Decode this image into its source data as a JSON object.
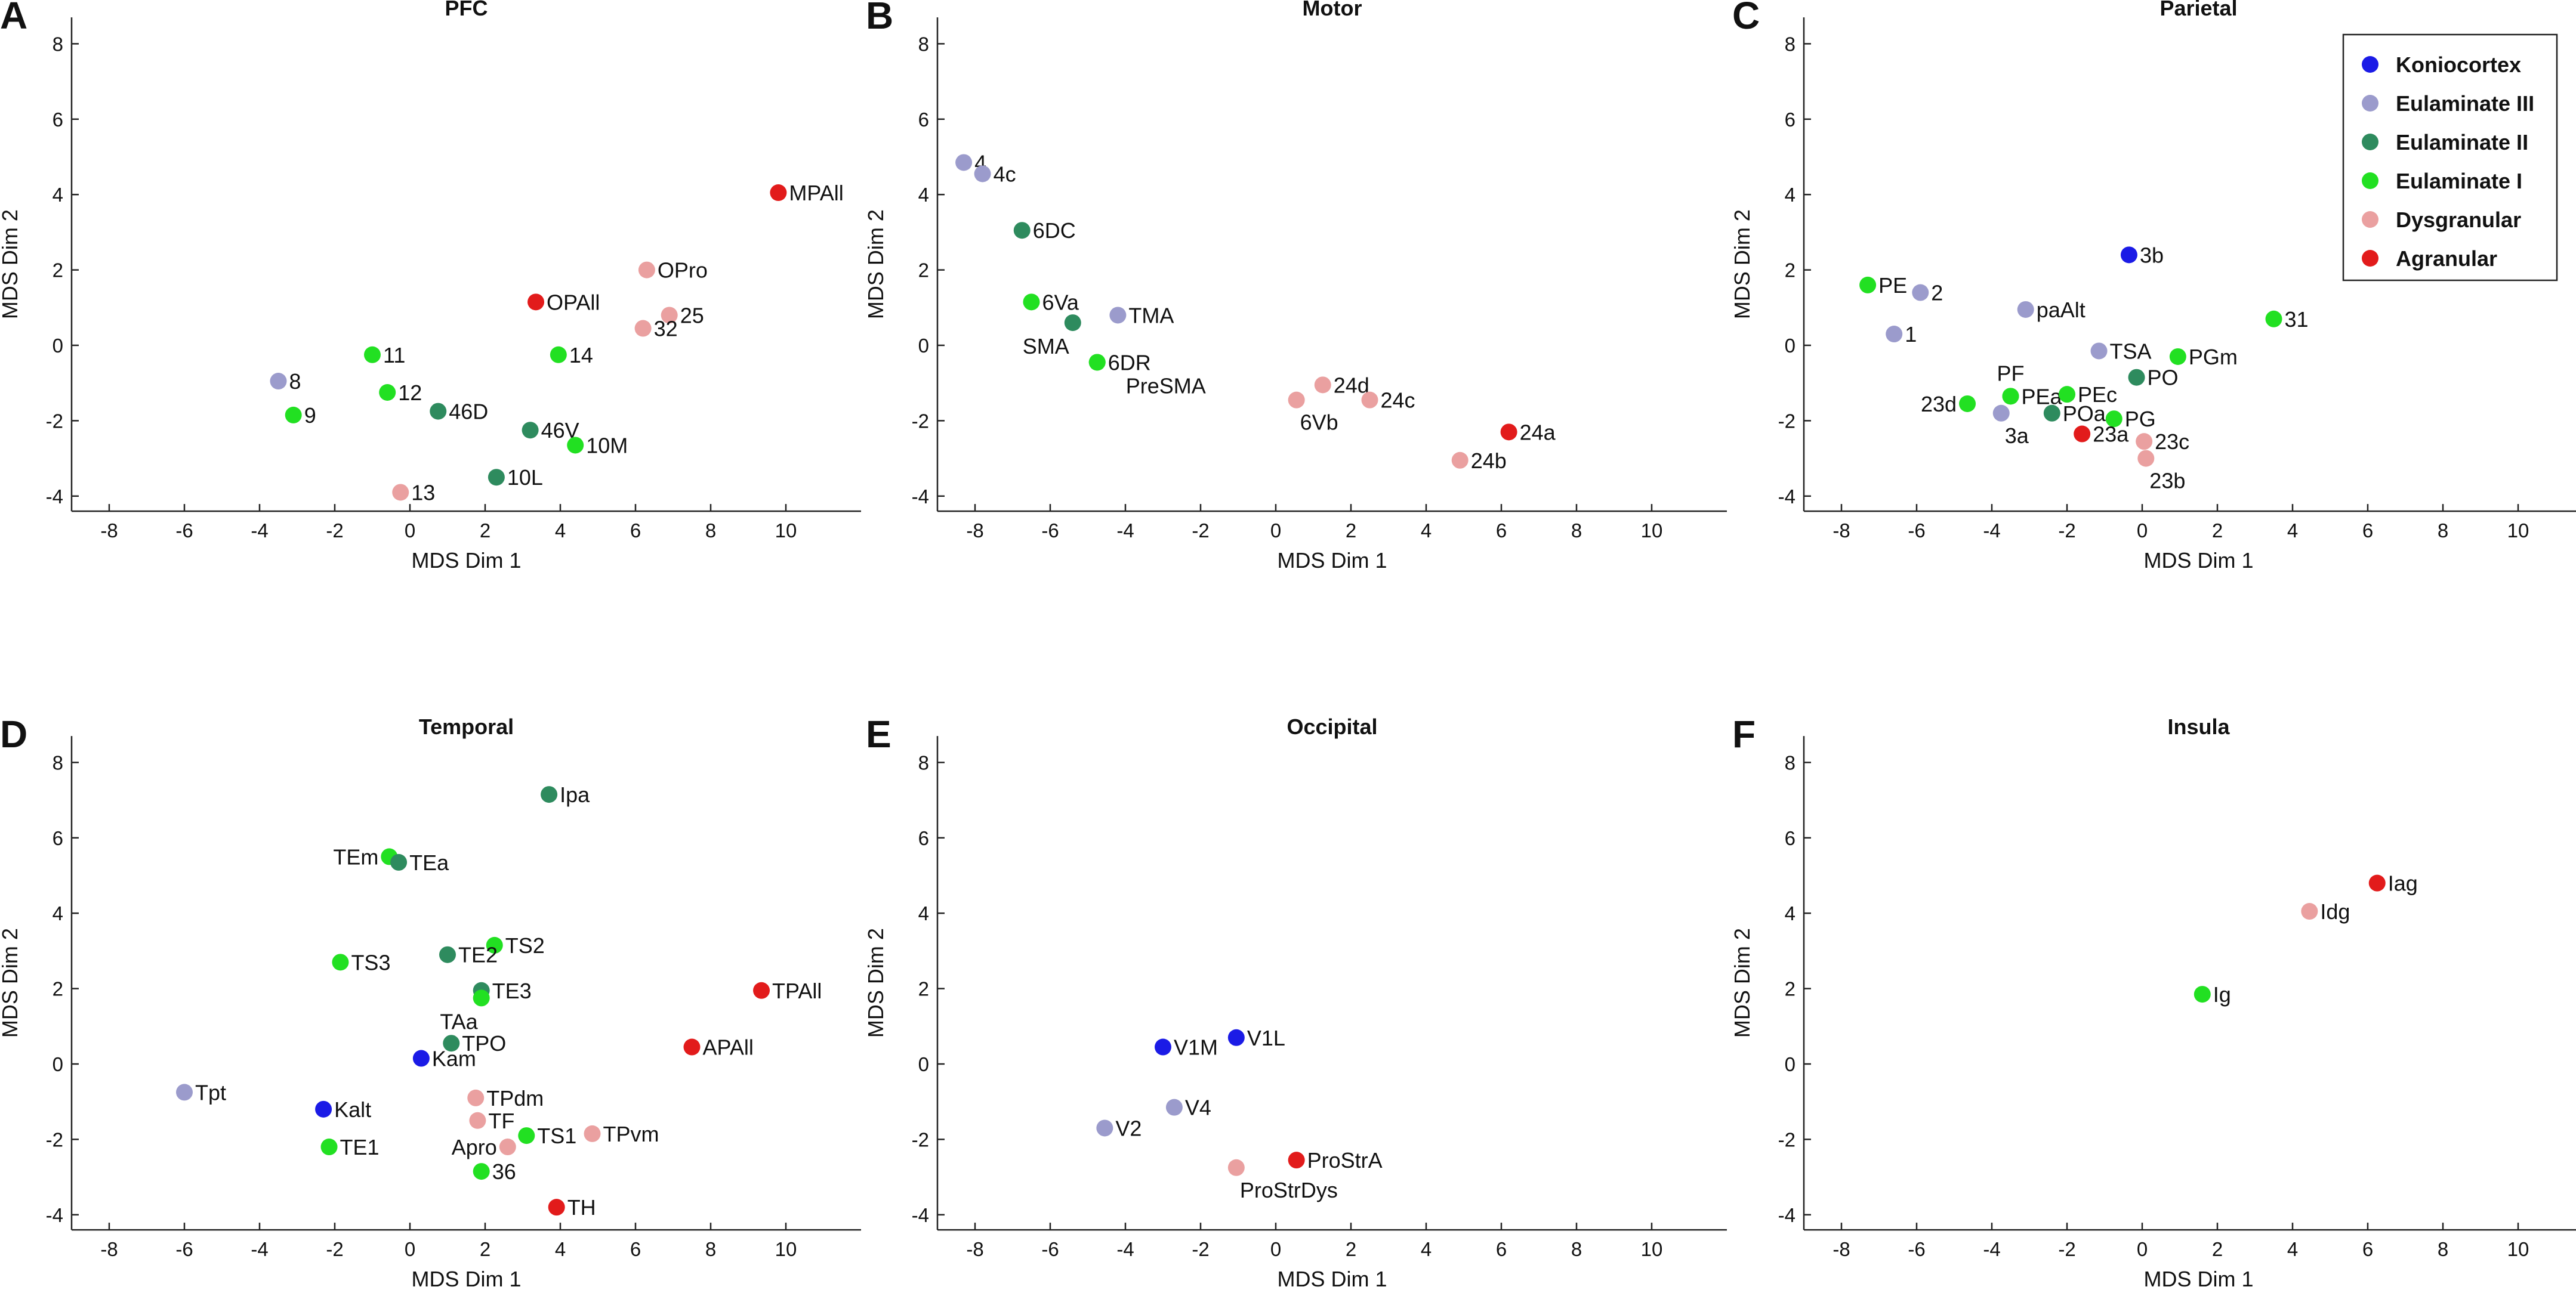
{
  "colors": {
    "Koniocortex": "#1b1be6",
    "Eulaminate III": "#9b9bcc",
    "Eulaminate II": "#2e8b5e",
    "Eulaminate I": "#22e022",
    "Dysgranular": "#eaa0a0",
    "Agranular": "#e21b1b"
  },
  "legend": {
    "placement": "top-right of panel C",
    "entries": [
      "Koniocortex",
      "Eulaminate III",
      "Eulaminate II",
      "Eulaminate I",
      "Dysgranular",
      "Agranular"
    ]
  },
  "chart_data": [
    {
      "type": "scatter",
      "panel": "A",
      "title": "PFC",
      "xlabel": "MDS Dim 1",
      "ylabel": "MDS Dim 2",
      "xlim": [
        -9,
        12
      ],
      "ylim": [
        -4.4,
        8.7
      ],
      "xticks": [
        -8,
        -6,
        -4,
        -2,
        0,
        2,
        4,
        6,
        8,
        10
      ],
      "yticks": [
        -4,
        -2,
        0,
        2,
        4,
        6,
        8
      ],
      "points": [
        {
          "label": "MPAll",
          "x": 9.8,
          "y": 4.05,
          "class": "Agranular",
          "lpos": "right"
        },
        {
          "label": "OPro",
          "x": 6.3,
          "y": 2.0,
          "class": "Dysgranular",
          "lpos": "right"
        },
        {
          "label": "OPAll",
          "x": 3.35,
          "y": 1.15,
          "class": "Agranular",
          "lpos": "right"
        },
        {
          "label": "25",
          "x": 6.9,
          "y": 0.8,
          "class": "Dysgranular",
          "lpos": "right"
        },
        {
          "label": "32",
          "x": 6.2,
          "y": 0.45,
          "class": "Dysgranular",
          "lpos": "right"
        },
        {
          "label": "14",
          "x": 3.95,
          "y": -0.25,
          "class": "Eulaminate I",
          "lpos": "right"
        },
        {
          "label": "11",
          "x": -1.0,
          "y": -0.25,
          "class": "Eulaminate I",
          "lpos": "right"
        },
        {
          "label": "8",
          "x": -3.5,
          "y": -0.95,
          "class": "Eulaminate III",
          "lpos": "right"
        },
        {
          "label": "12",
          "x": -0.6,
          "y": -1.25,
          "class": "Eulaminate I",
          "lpos": "right"
        },
        {
          "label": "46D",
          "x": 0.75,
          "y": -1.75,
          "class": "Eulaminate II",
          "lpos": "right"
        },
        {
          "label": "9",
          "x": -3.1,
          "y": -1.85,
          "class": "Eulaminate I",
          "lpos": "right"
        },
        {
          "label": "46V",
          "x": 3.2,
          "y": -2.25,
          "class": "Eulaminate II",
          "lpos": "right"
        },
        {
          "label": "10M",
          "x": 4.4,
          "y": -2.65,
          "class": "Eulaminate I",
          "lpos": "right"
        },
        {
          "label": "10L",
          "x": 2.3,
          "y": -3.5,
          "class": "Eulaminate II",
          "lpos": "right"
        },
        {
          "label": "13",
          "x": -0.25,
          "y": -3.9,
          "class": "Dysgranular",
          "lpos": "right"
        }
      ]
    },
    {
      "type": "scatter",
      "panel": "B",
      "title": "Motor",
      "xlabel": "MDS Dim 1",
      "ylabel": "MDS Dim 2",
      "xlim": [
        -9,
        12
      ],
      "ylim": [
        -4.4,
        8.7
      ],
      "xticks": [
        -8,
        -6,
        -4,
        -2,
        0,
        2,
        4,
        6,
        8,
        10
      ],
      "yticks": [
        -4,
        -2,
        0,
        2,
        4,
        6,
        8
      ],
      "points": [
        {
          "label": "4",
          "x": -8.3,
          "y": 4.85,
          "class": "Eulaminate III",
          "lpos": "right"
        },
        {
          "label": "4c",
          "x": -7.8,
          "y": 4.55,
          "class": "Eulaminate III",
          "lpos": "right"
        },
        {
          "label": "6DC",
          "x": -6.75,
          "y": 3.05,
          "class": "Eulaminate II",
          "lpos": "right"
        },
        {
          "label": "6Va",
          "x": -6.5,
          "y": 1.15,
          "class": "Eulaminate I",
          "lpos": "right"
        },
        {
          "label": "TMA",
          "x": -4.2,
          "y": 0.8,
          "class": "Eulaminate III",
          "lpos": "right"
        },
        {
          "label": "SMA",
          "x": -5.4,
          "y": 0.6,
          "class": "Eulaminate II",
          "lpos": "below-left"
        },
        {
          "label": "6DR",
          "x": -4.75,
          "y": -0.45,
          "class": "Eulaminate I",
          "lpos": "right"
        },
        {
          "label": "PreSMA",
          "x": -4.75,
          "y": -0.45,
          "class": "Eulaminate I",
          "lpos": "below"
        },
        {
          "label": "24d",
          "x": 1.25,
          "y": -1.05,
          "class": "Dysgranular",
          "lpos": "right"
        },
        {
          "label": "6Vb",
          "x": 0.55,
          "y": -1.45,
          "class": "Dysgranular",
          "lpos": "below-right"
        },
        {
          "label": "24c",
          "x": 2.5,
          "y": -1.45,
          "class": "Dysgranular",
          "lpos": "right"
        },
        {
          "label": "24a",
          "x": 6.2,
          "y": -2.3,
          "class": "Agranular",
          "lpos": "right"
        },
        {
          "label": "24b",
          "x": 4.9,
          "y": -3.05,
          "class": "Dysgranular",
          "lpos": "right"
        }
      ]
    },
    {
      "type": "scatter",
      "panel": "C",
      "title": "Parietal",
      "xlabel": "MDS Dim 1",
      "ylabel": "MDS Dim 2",
      "xlim": [
        -9,
        12
      ],
      "ylim": [
        -4.4,
        8.7
      ],
      "xticks": [
        -8,
        -6,
        -4,
        -2,
        0,
        2,
        4,
        6,
        8,
        10
      ],
      "yticks": [
        -4,
        -2,
        0,
        2,
        4,
        6,
        8
      ],
      "points": [
        {
          "label": "3b",
          "x": -0.35,
          "y": 2.4,
          "class": "Koniocortex",
          "lpos": "right"
        },
        {
          "label": "PE",
          "x": -7.3,
          "y": 1.6,
          "class": "Eulaminate I",
          "lpos": "right"
        },
        {
          "label": "2",
          "x": -5.9,
          "y": 1.4,
          "class": "Eulaminate III",
          "lpos": "right"
        },
        {
          "label": "paAlt",
          "x": -3.1,
          "y": 0.95,
          "class": "Eulaminate III",
          "lpos": "right"
        },
        {
          "label": "31",
          "x": 3.5,
          "y": 0.7,
          "class": "Eulaminate I",
          "lpos": "right"
        },
        {
          "label": "1",
          "x": -6.6,
          "y": 0.3,
          "class": "Eulaminate III",
          "lpos": "right"
        },
        {
          "label": "TSA",
          "x": -1.15,
          "y": -0.15,
          "class": "Eulaminate III",
          "lpos": "right"
        },
        {
          "label": "PGm",
          "x": 0.95,
          "y": -0.3,
          "class": "Eulaminate I",
          "lpos": "right"
        },
        {
          "label": "PO",
          "x": -0.15,
          "y": -0.85,
          "class": "Eulaminate II",
          "lpos": "right"
        },
        {
          "label": "PF",
          "x": -3.5,
          "y": -1.35,
          "class": "Eulaminate I",
          "lpos": "above"
        },
        {
          "label": "PEa",
          "x": -3.5,
          "y": -1.35,
          "class": "Eulaminate I",
          "lpos": "right"
        },
        {
          "label": "PEc",
          "x": -2.0,
          "y": -1.3,
          "class": "Eulaminate I",
          "lpos": "right"
        },
        {
          "label": "23d",
          "x": -4.65,
          "y": -1.55,
          "class": "Eulaminate I",
          "lpos": "left"
        },
        {
          "label": "3a",
          "x": -3.75,
          "y": -1.8,
          "class": "Eulaminate III",
          "lpos": "below-right"
        },
        {
          "label": "POa",
          "x": -2.4,
          "y": -1.8,
          "class": "Eulaminate II",
          "lpos": "right"
        },
        {
          "label": "PG",
          "x": -0.75,
          "y": -1.95,
          "class": "Eulaminate I",
          "lpos": "right"
        },
        {
          "label": "23a",
          "x": -1.6,
          "y": -2.35,
          "class": "Agranular",
          "lpos": "right"
        },
        {
          "label": "23c",
          "x": 0.05,
          "y": -2.55,
          "class": "Dysgranular",
          "lpos": "right"
        },
        {
          "label": "23b",
          "x": 0.1,
          "y": -3.0,
          "class": "Dysgranular",
          "lpos": "below-right"
        }
      ]
    },
    {
      "type": "scatter",
      "panel": "D",
      "title": "Temporal",
      "xlabel": "MDS Dim 1",
      "ylabel": "MDS Dim 2",
      "xlim": [
        -9,
        12
      ],
      "ylim": [
        -4.4,
        8.7
      ],
      "xticks": [
        -8,
        -6,
        -4,
        -2,
        0,
        2,
        4,
        6,
        8,
        10
      ],
      "yticks": [
        -4,
        -2,
        0,
        2,
        4,
        6,
        8
      ],
      "points": [
        {
          "label": "Ipa",
          "x": 3.7,
          "y": 7.15,
          "class": "Eulaminate II",
          "lpos": "right"
        },
        {
          "label": "TEm",
          "x": -0.55,
          "y": 5.5,
          "class": "Eulaminate I",
          "lpos": "left"
        },
        {
          "label": "TEa",
          "x": -0.3,
          "y": 5.35,
          "class": "Eulaminate II",
          "lpos": "right"
        },
        {
          "label": "TS2",
          "x": 2.25,
          "y": 3.15,
          "class": "Eulaminate I",
          "lpos": "right"
        },
        {
          "label": "TE2",
          "x": 1.0,
          "y": 2.9,
          "class": "Eulaminate II",
          "lpos": "right"
        },
        {
          "label": "TS3",
          "x": -1.85,
          "y": 2.7,
          "class": "Eulaminate I",
          "lpos": "right"
        },
        {
          "label": "TPAll",
          "x": 9.35,
          "y": 1.95,
          "class": "Agranular",
          "lpos": "right"
        },
        {
          "label": "TE3",
          "x": 1.9,
          "y": 1.95,
          "class": "Eulaminate II",
          "lpos": "right"
        },
        {
          "label": "TAa",
          "x": 1.9,
          "y": 1.75,
          "class": "Eulaminate I",
          "lpos": "below-left"
        },
        {
          "label": "TPO",
          "x": 1.1,
          "y": 0.55,
          "class": "Eulaminate II",
          "lpos": "right"
        },
        {
          "label": "APAll",
          "x": 7.5,
          "y": 0.45,
          "class": "Agranular",
          "lpos": "right"
        },
        {
          "label": "Kam",
          "x": 0.3,
          "y": 0.15,
          "class": "Koniocortex",
          "lpos": "right"
        },
        {
          "label": "Tpt",
          "x": -6.0,
          "y": -0.75,
          "class": "Eulaminate III",
          "lpos": "right"
        },
        {
          "label": "TPdm",
          "x": 1.75,
          "y": -0.9,
          "class": "Dysgranular",
          "lpos": "right"
        },
        {
          "label": "Kalt",
          "x": -2.3,
          "y": -1.2,
          "class": "Koniocortex",
          "lpos": "right"
        },
        {
          "label": "TF",
          "x": 1.8,
          "y": -1.5,
          "class": "Dysgranular",
          "lpos": "right"
        },
        {
          "label": "TS1",
          "x": 3.1,
          "y": -1.9,
          "class": "Eulaminate I",
          "lpos": "right"
        },
        {
          "label": "TPvm",
          "x": 4.85,
          "y": -1.85,
          "class": "Dysgranular",
          "lpos": "right"
        },
        {
          "label": "TE1",
          "x": -2.15,
          "y": -2.2,
          "class": "Eulaminate I",
          "lpos": "right"
        },
        {
          "label": "Apro",
          "x": 2.6,
          "y": -2.2,
          "class": "Dysgranular",
          "lpos": "left"
        },
        {
          "label": "36",
          "x": 1.9,
          "y": -2.85,
          "class": "Eulaminate I",
          "lpos": "right"
        },
        {
          "label": "TH",
          "x": 3.9,
          "y": -3.8,
          "class": "Agranular",
          "lpos": "right"
        }
      ]
    },
    {
      "type": "scatter",
      "panel": "E",
      "title": "Occipital",
      "xlabel": "MDS Dim 1",
      "ylabel": "MDS Dim 2",
      "xlim": [
        -9,
        12
      ],
      "ylim": [
        -4.4,
        8.7
      ],
      "xticks": [
        -8,
        -6,
        -4,
        -2,
        0,
        2,
        4,
        6,
        8,
        10
      ],
      "yticks": [
        -4,
        -2,
        0,
        2,
        4,
        6,
        8
      ],
      "points": [
        {
          "label": "V1L",
          "x": -1.05,
          "y": 0.7,
          "class": "Koniocortex",
          "lpos": "right"
        },
        {
          "label": "V1M",
          "x": -3.0,
          "y": 0.45,
          "class": "Koniocortex",
          "lpos": "right"
        },
        {
          "label": "V4",
          "x": -2.7,
          "y": -1.15,
          "class": "Eulaminate III",
          "lpos": "right"
        },
        {
          "label": "V2",
          "x": -4.55,
          "y": -1.7,
          "class": "Eulaminate III",
          "lpos": "right"
        },
        {
          "label": "ProStrA",
          "x": 0.55,
          "y": -2.55,
          "class": "Agranular",
          "lpos": "right"
        },
        {
          "label": "ProStrDys",
          "x": -1.05,
          "y": -2.75,
          "class": "Dysgranular",
          "lpos": "below-right"
        }
      ]
    },
    {
      "type": "scatter",
      "panel": "F",
      "title": "Insula",
      "xlabel": "MDS Dim 1",
      "ylabel": "MDS Dim 2",
      "xlim": [
        -9,
        12
      ],
      "ylim": [
        -4.4,
        8.7
      ],
      "xticks": [
        -8,
        -6,
        -4,
        -2,
        0,
        2,
        4,
        6,
        8,
        10
      ],
      "yticks": [
        -4,
        -2,
        0,
        2,
        4,
        6,
        8
      ],
      "points": [
        {
          "label": "Iag",
          "x": 6.25,
          "y": 4.8,
          "class": "Agranular",
          "lpos": "right"
        },
        {
          "label": "Idg",
          "x": 4.45,
          "y": 4.05,
          "class": "Dysgranular",
          "lpos": "right"
        },
        {
          "label": "Ig",
          "x": 1.6,
          "y": 1.85,
          "class": "Eulaminate I",
          "lpos": "right"
        }
      ]
    }
  ]
}
